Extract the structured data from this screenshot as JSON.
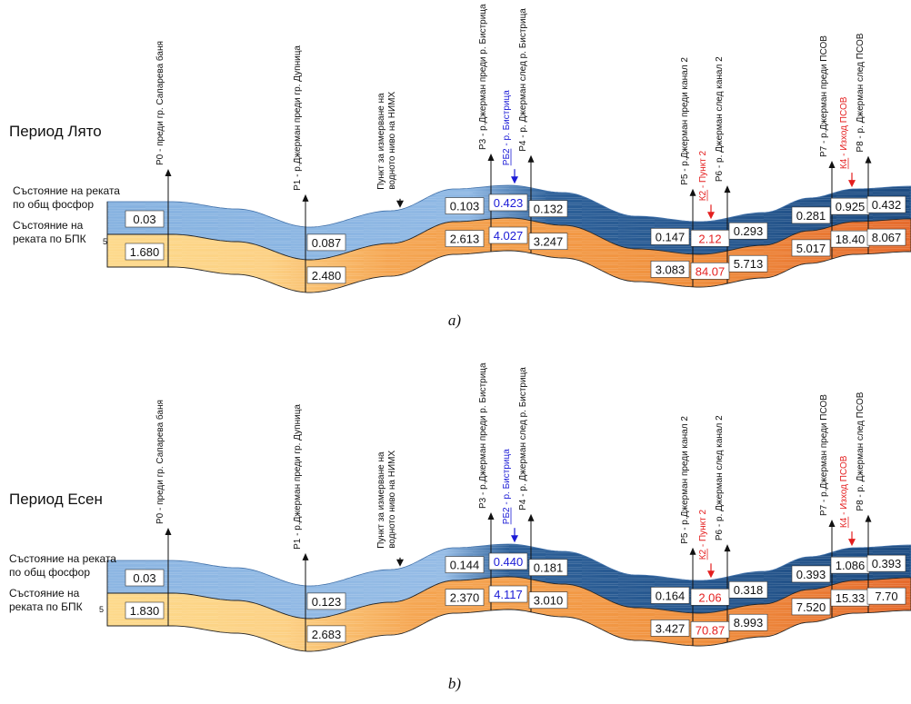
{
  "colors": {
    "blue_light": "#a9c8ea",
    "blue_mid": "#5b8fc7",
    "blue_dark": "#1f4f85",
    "orange_light": "#fde3a8",
    "orange_mid": "#f2a04a",
    "orange_dark": "#e0602a",
    "red_text": "#e41f1f",
    "blue_text": "#1b1bd6",
    "black": "#111111"
  },
  "panels": [
    {
      "period_title": "Период Лято",
      "label_phosphorus": "Състояние на реката по общ фосфор",
      "label_phosphorus_lines": [
        "Състояние на реката",
        "по общ фосфор"
      ],
      "label_bpk_lines": [
        "Състояние на",
        "реката по БПК"
      ],
      "label_bpk_sub": "5",
      "caption": "a)",
      "points": [
        {
          "label": "Р0 - преди гр. Сапарева баня",
          "dir": "up",
          "color": "black"
        },
        {
          "label": "Р1 - р.Джерман преди гр. Дупница",
          "dir": "up",
          "color": "black"
        },
        {
          "label_lines": [
            "Пункт за измерване на",
            "водното ниво на НИМХ"
          ],
          "dir": "down",
          "color": "black"
        },
        {
          "label": "Р3 - р.Джерман преди р. Бистрица",
          "dir": "up",
          "color": "black"
        },
        {
          "label": "РБ2 - р. Бистрица",
          "dir": "down",
          "color": "blue"
        },
        {
          "label": "Р4 - р. Джерман след р. Бистрица",
          "dir": "up",
          "color": "black"
        },
        {
          "label": "Р5 - р.Джерман преди канал 2",
          "dir": "up",
          "color": "black"
        },
        {
          "label": "К2 - Пункт 2",
          "dir": "down",
          "color": "red"
        },
        {
          "label": "Р6 - р. Джерман след канал 2",
          "dir": "up",
          "color": "black"
        },
        {
          "label": "Р7 - р.Джерман преди ПСОВ",
          "dir": "up",
          "color": "black"
        },
        {
          "label": "К4 - Изход ПСОВ",
          "dir": "down",
          "color": "red"
        },
        {
          "label": "Р8 - р. Джерман след ПСОВ",
          "dir": "up",
          "color": "black"
        }
      ],
      "phosphorus_values": [
        {
          "value": "0.03",
          "color": "black"
        },
        {
          "value": "0.087",
          "color": "black"
        },
        {
          "value": "0.103",
          "color": "black"
        },
        {
          "value": "0.423",
          "color": "blue"
        },
        {
          "value": "0.132",
          "color": "black"
        },
        {
          "value": "0.147",
          "color": "black"
        },
        {
          "value": "2.12",
          "color": "red"
        },
        {
          "value": "0.293",
          "color": "black"
        },
        {
          "value": "0.281",
          "color": "black"
        },
        {
          "value": "0.925",
          "color": "black"
        },
        {
          "value": "0.432",
          "color": "black"
        }
      ],
      "bpk_values": [
        {
          "value": "1.680",
          "color": "black"
        },
        {
          "value": "2.480",
          "color": "black"
        },
        {
          "value": "2.613",
          "color": "black"
        },
        {
          "value": "4.027",
          "color": "blue"
        },
        {
          "value": "3.247",
          "color": "black"
        },
        {
          "value": "3.083",
          "color": "black"
        },
        {
          "value": "84.07",
          "color": "red"
        },
        {
          "value": "5.713",
          "color": "black"
        },
        {
          "value": "5.017",
          "color": "black"
        },
        {
          "value": "18.40",
          "color": "black"
        },
        {
          "value": "8.067",
          "color": "black"
        }
      ]
    },
    {
      "period_title": "Период Есен",
      "label_phosphorus": "Състояние на реката по общ фосфор",
      "label_phosphorus_lines": [
        "Състояние на реката",
        "по общ фосфор"
      ],
      "label_bpk_lines": [
        "Състояние на",
        "реката по БПК"
      ],
      "label_bpk_sub": "5",
      "caption": "b)",
      "points": [
        {
          "label": "Р0 - преди гр. Сапарева баня",
          "dir": "up",
          "color": "black"
        },
        {
          "label": "Р1 - р.Джерман преди гр. Дупница",
          "dir": "up",
          "color": "black"
        },
        {
          "label_lines": [
            "Пункт за измерване на",
            "водното ниво на НИМХ"
          ],
          "dir": "down",
          "color": "black"
        },
        {
          "label": "Р3 - р.Джерман преди р. Бистрица",
          "dir": "up",
          "color": "black"
        },
        {
          "label": "РБ2 - р. Бистрица",
          "dir": "down",
          "color": "blue"
        },
        {
          "label": "Р4 - р. Джерман след р. Бистрица",
          "dir": "up",
          "color": "black"
        },
        {
          "label": "Р5 - р.Джерман преди канал 2",
          "dir": "up",
          "color": "black"
        },
        {
          "label": "К2 - Пункт 2",
          "dir": "down",
          "color": "red"
        },
        {
          "label": "Р6 - р. Джерман след канал 2",
          "dir": "up",
          "color": "black"
        },
        {
          "label": "Р7 - р.Джерман преди ПСОВ",
          "dir": "up",
          "color": "black"
        },
        {
          "label": "К4 - Изход ПСОВ",
          "dir": "down",
          "color": "red"
        },
        {
          "label": "Р8 - р. Джерман след ПСОВ",
          "dir": "up",
          "color": "black"
        }
      ],
      "phosphorus_values": [
        {
          "value": "0.03",
          "color": "black"
        },
        {
          "value": "0.123",
          "color": "black"
        },
        {
          "value": "0.144",
          "color": "black"
        },
        {
          "value": "0.440",
          "color": "blue"
        },
        {
          "value": "0.181",
          "color": "black"
        },
        {
          "value": "0.164",
          "color": "black"
        },
        {
          "value": "2.06",
          "color": "red"
        },
        {
          "value": "0.318",
          "color": "black"
        },
        {
          "value": "0.393",
          "color": "black"
        },
        {
          "value": "1.086",
          "color": "black"
        },
        {
          "value": "0.393",
          "color": "black"
        }
      ],
      "bpk_values": [
        {
          "value": "1.830",
          "color": "black"
        },
        {
          "value": "2.683",
          "color": "black"
        },
        {
          "value": "2.370",
          "color": "black"
        },
        {
          "value": "4.117",
          "color": "blue"
        },
        {
          "value": "3.010",
          "color": "black"
        },
        {
          "value": "3.427",
          "color": "black"
        },
        {
          "value": "70.87",
          "color": "red"
        },
        {
          "value": "8.993",
          "color": "black"
        },
        {
          "value": "7.520",
          "color": "black"
        },
        {
          "value": "15.33",
          "color": "black"
        },
        {
          "value": "7.70",
          "color": "black"
        }
      ]
    }
  ]
}
